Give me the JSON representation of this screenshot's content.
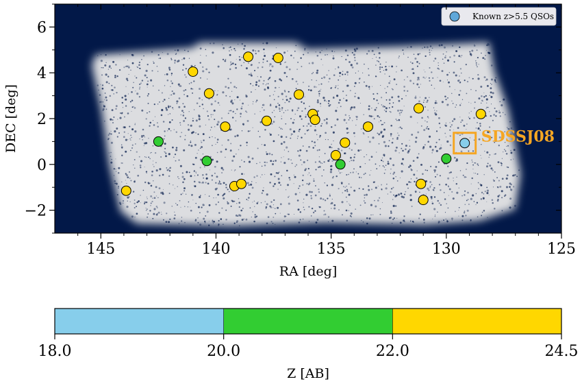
{
  "chart_data": [
    {
      "type": "scatter",
      "xlabel": "RA [deg]",
      "ylabel": "DEC [deg]",
      "xlim": [
        147,
        125
      ],
      "ylim": [
        -3,
        7
      ],
      "x_ticks": [
        145,
        140,
        135,
        130,
        125
      ],
      "x_tick_labels": [
        "145",
        "140",
        "135",
        "130",
        "125"
      ],
      "y_ticks": [
        -2,
        0,
        2,
        4,
        6
      ],
      "y_tick_labels": [
        "−2",
        "0",
        "2",
        "4",
        "6"
      ],
      "grid": false,
      "background_color": "#021848",
      "field_color": "#e8e8e8",
      "legend": {
        "placement": "top-right",
        "entries": [
          {
            "label": "Known z>5.5 QSOs",
            "color": "#5fa7d9"
          }
        ]
      },
      "annotation": {
        "text": "SDSSJ08",
        "x": 129.2,
        "y": 0.93,
        "color": "#f5a623"
      },
      "sources": [
        {
          "ra": 143.9,
          "dec": -1.15,
          "z": 23.0
        },
        {
          "ra": 142.5,
          "dec": 1.0,
          "z": 21.0
        },
        {
          "ra": 141.0,
          "dec": 4.05,
          "z": 23.0
        },
        {
          "ra": 140.4,
          "dec": 0.15,
          "z": 21.0
        },
        {
          "ra": 140.3,
          "dec": 3.1,
          "z": 23.0
        },
        {
          "ra": 139.6,
          "dec": 1.65,
          "z": 23.0
        },
        {
          "ra": 139.2,
          "dec": -0.95,
          "z": 23.0
        },
        {
          "ra": 138.9,
          "dec": -0.85,
          "z": 23.0
        },
        {
          "ra": 138.6,
          "dec": 4.7,
          "z": 23.0
        },
        {
          "ra": 137.8,
          "dec": 1.9,
          "z": 23.0
        },
        {
          "ra": 137.3,
          "dec": 4.65,
          "z": 23.0
        },
        {
          "ra": 136.4,
          "dec": 3.05,
          "z": 23.0
        },
        {
          "ra": 135.8,
          "dec": 2.2,
          "z": 23.0
        },
        {
          "ra": 135.7,
          "dec": 1.95,
          "z": 23.0
        },
        {
          "ra": 134.8,
          "dec": 0.4,
          "z": 23.0
        },
        {
          "ra": 134.6,
          "dec": 0.0,
          "z": 21.0
        },
        {
          "ra": 134.4,
          "dec": 0.95,
          "z": 23.0
        },
        {
          "ra": 133.4,
          "dec": 1.65,
          "z": 23.0
        },
        {
          "ra": 131.2,
          "dec": 2.45,
          "z": 23.0
        },
        {
          "ra": 131.1,
          "dec": -0.85,
          "z": 23.0
        },
        {
          "ra": 131.0,
          "dec": -1.55,
          "z": 23.0
        },
        {
          "ra": 130.0,
          "dec": 0.25,
          "z": 21.0
        },
        {
          "ra": 129.2,
          "dec": 0.93,
          "z": 19.0
        },
        {
          "ra": 128.5,
          "dec": 2.2,
          "z": 23.0
        }
      ]
    },
    {
      "type": "colorbar",
      "xlabel": "Z [AB]",
      "range": [
        18.0,
        24.5
      ],
      "ticks": [
        18.0,
        20.0,
        22.0,
        24.5
      ],
      "tick_labels": [
        "18.0",
        "20.0",
        "22.0",
        "24.5"
      ],
      "segments": [
        {
          "from": 18.0,
          "to": 20.0,
          "color": "#87ceeb"
        },
        {
          "from": 20.0,
          "to": 22.0,
          "color": "#32cd32"
        },
        {
          "from": 22.0,
          "to": 24.5,
          "color": "#ffd700"
        }
      ]
    }
  ]
}
